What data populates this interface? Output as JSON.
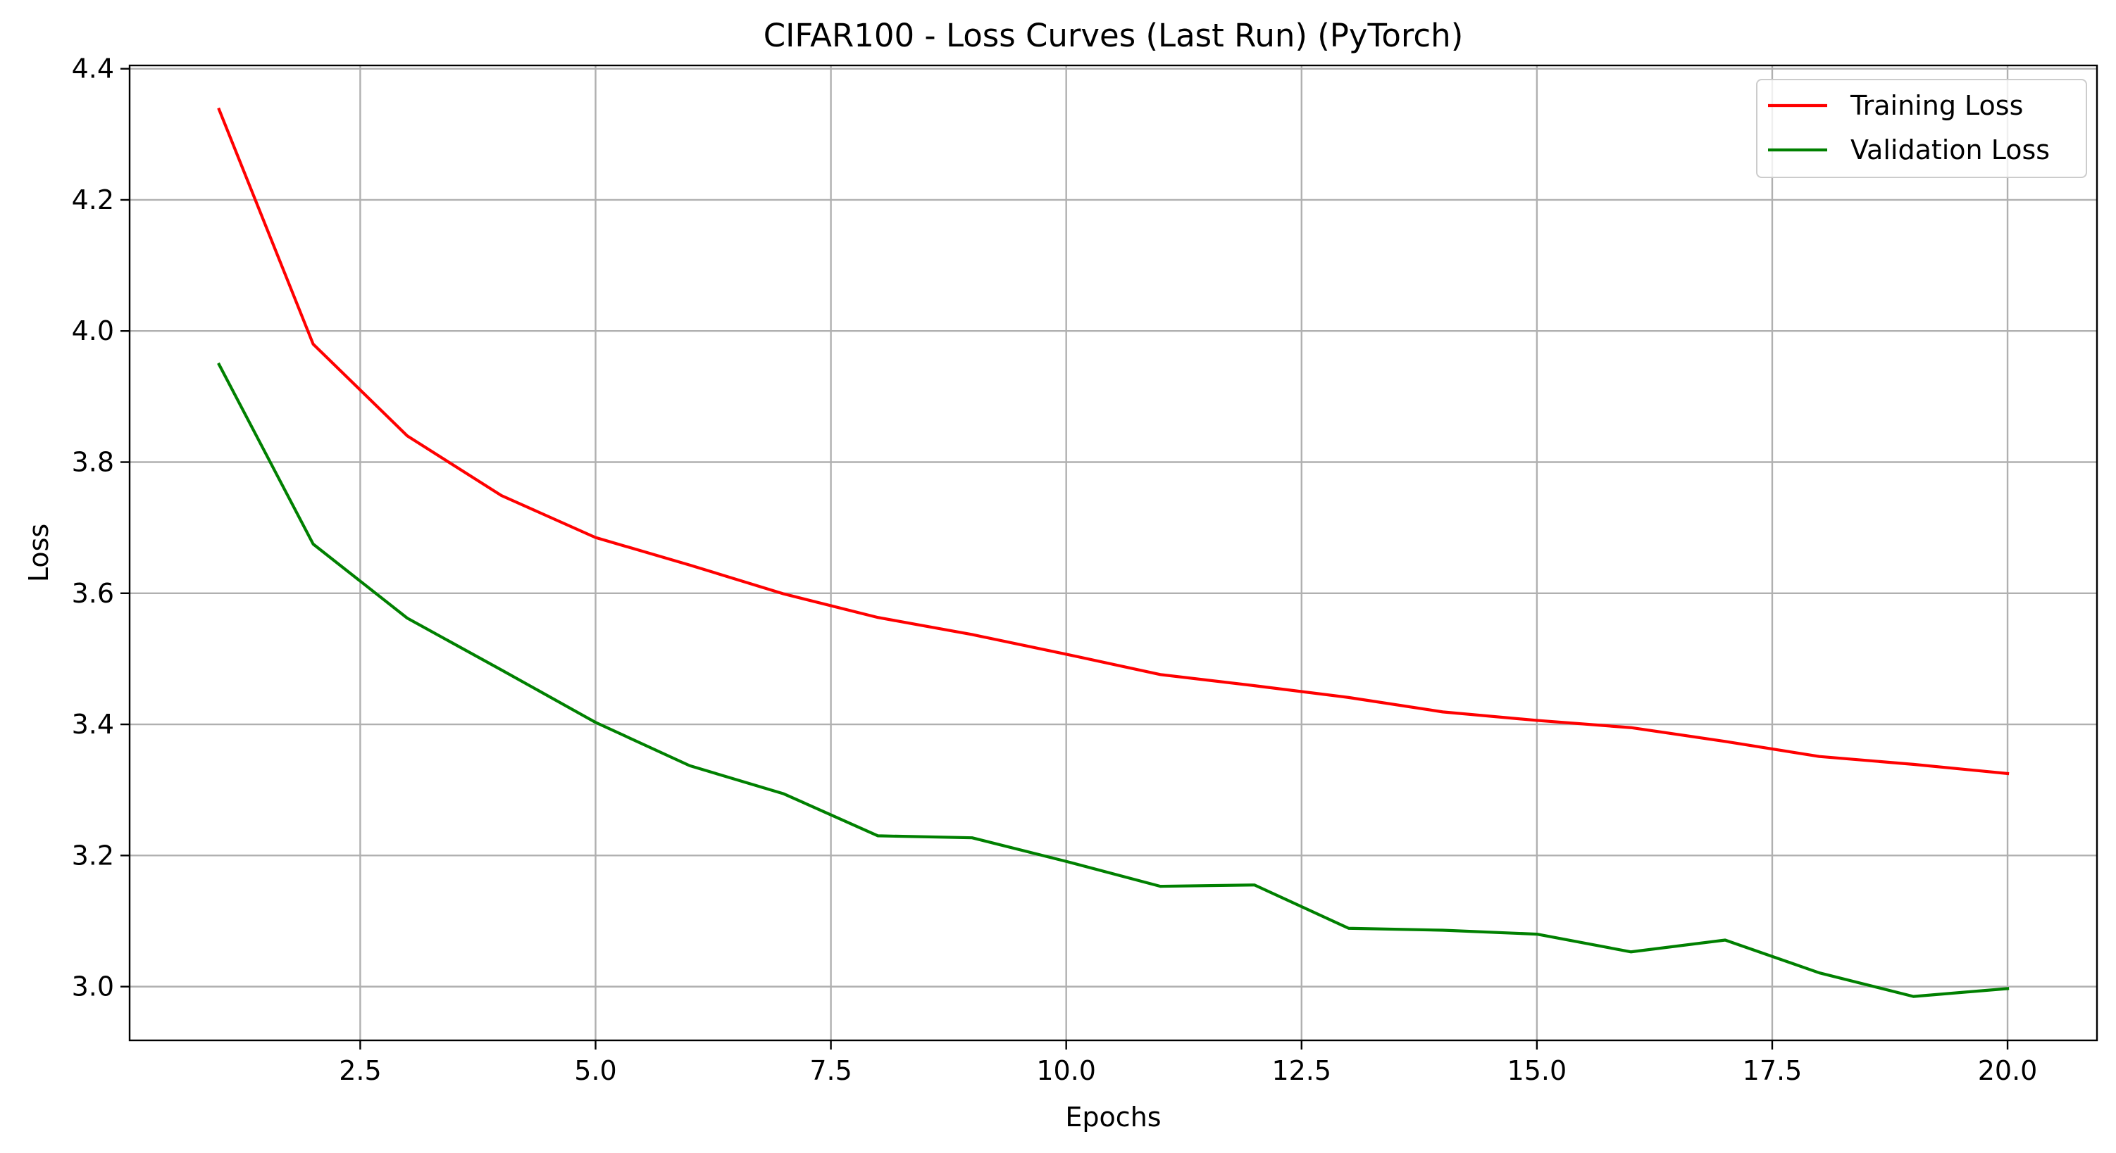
{
  "chart_data": {
    "type": "line",
    "title": "CIFAR100 - Loss Curves (Last Run) (PyTorch)",
    "xlabel": "Epochs",
    "ylabel": "Loss",
    "x": [
      1,
      2,
      3,
      4,
      5,
      6,
      7,
      8,
      9,
      10,
      11,
      12,
      13,
      14,
      15,
      16,
      17,
      18,
      19,
      20
    ],
    "xlim": [
      0.05,
      20.95
    ],
    "ylim": [
      2.918,
      4.405
    ],
    "xticks": [
      2.5,
      5.0,
      7.5,
      10.0,
      12.5,
      15.0,
      17.5,
      20.0
    ],
    "xtick_labels": [
      "2.5",
      "5.0",
      "7.5",
      "10.0",
      "12.5",
      "15.0",
      "17.5",
      "20.0"
    ],
    "yticks": [
      3.0,
      3.2,
      3.4,
      3.6,
      3.8,
      4.0,
      4.2,
      4.4
    ],
    "ytick_labels": [
      "3.0",
      "3.2",
      "3.4",
      "3.6",
      "3.8",
      "4.0",
      "4.2",
      "4.4"
    ],
    "grid": true,
    "legend_position": "top-right",
    "series": [
      {
        "name": "Training Loss",
        "color": "#ff0000",
        "values": [
          4.338,
          3.98,
          3.84,
          3.749,
          3.685,
          3.643,
          3.599,
          3.563,
          3.537,
          3.507,
          3.476,
          3.459,
          3.441,
          3.419,
          3.406,
          3.395,
          3.374,
          3.351,
          3.339,
          3.325
        ]
      },
      {
        "name": "Validation Loss",
        "color": "#008000",
        "values": [
          3.949,
          3.675,
          3.562,
          3.483,
          3.403,
          3.337,
          3.294,
          3.23,
          3.227,
          3.191,
          3.153,
          3.155,
          3.089,
          3.086,
          3.08,
          3.053,
          3.071,
          3.021,
          2.985,
          2.997
        ]
      }
    ]
  }
}
